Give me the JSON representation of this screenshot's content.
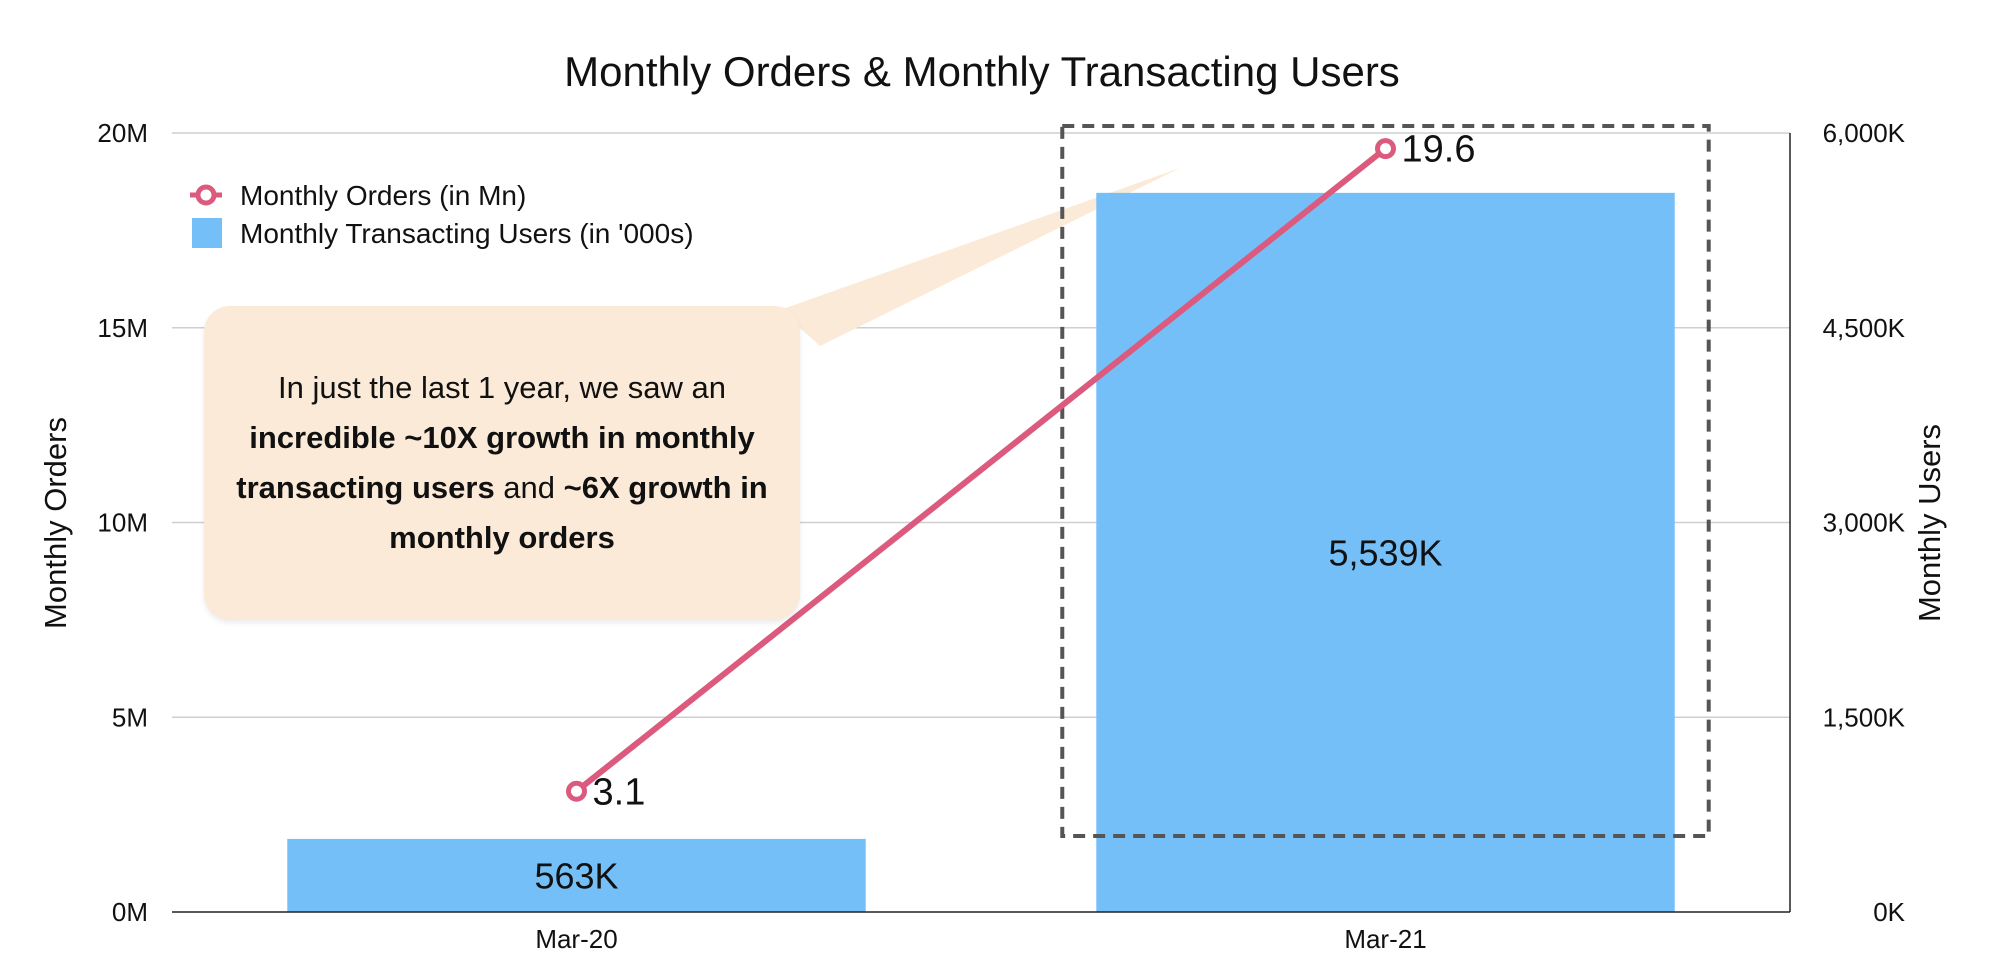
{
  "chart_data": {
    "type": "bar",
    "title": "Monthly Orders & Monthly Transacting Users",
    "categories": [
      "Mar-20",
      "Mar-21"
    ],
    "y_left": {
      "label": "Monthly Orders",
      "ylim": [
        0,
        20
      ],
      "ticks": [
        0,
        5,
        10,
        15,
        20
      ],
      "tick_labels": [
        "0M",
        "5M",
        "10M",
        "15M",
        "20M"
      ]
    },
    "y_right": {
      "label": "Monthly Users",
      "ylim": [
        0,
        6000
      ],
      "ticks": [
        0,
        1500,
        3000,
        4500,
        6000
      ],
      "tick_labels": [
        "0K",
        "1,500K",
        "3,000K",
        "4,500K",
        "6,000K"
      ]
    },
    "series": [
      {
        "name": "Monthly Transacting Users (in '000s)",
        "type": "bar",
        "axis": "right",
        "color": "#74bff8",
        "values": [
          563,
          5539
        ],
        "labels": [
          "563K",
          "5,539K"
        ]
      },
      {
        "name": "Monthly Orders (in Mn)",
        "type": "line",
        "axis": "left",
        "color": "#db5a7e",
        "values": [
          3.1,
          19.6
        ],
        "labels": [
          "3.1",
          "19.6"
        ]
      }
    ],
    "grid": true,
    "legend": "top-left",
    "highlight_category": "Mar-21",
    "annotation": {
      "line1": "In just the last 1 year, we saw an",
      "bold1": "incredible ~10X growth in monthly transacting users",
      "mid": " and ",
      "bold2": "~6X growth in monthly orders"
    }
  }
}
